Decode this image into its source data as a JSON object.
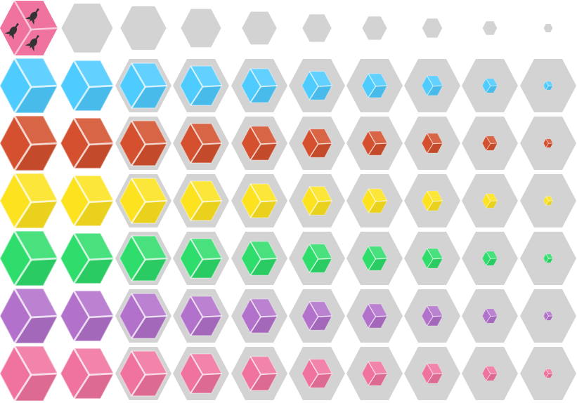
{
  "sheet": {
    "title": "",
    "columns": 10,
    "background_tile_color": "#d3d3d3",
    "scale_steps": [
      1.0,
      0.92,
      0.82,
      0.72,
      0.62,
      0.52,
      0.44,
      0.36,
      0.26,
      0.16
    ]
  },
  "bomb_row": {
    "name": "bomb-tile",
    "color": "#f0739f",
    "icon": "bomb-icon",
    "icon_count": 3
  },
  "gem_rows": [
    {
      "name": "blue-gem",
      "color": "#4ecbff"
    },
    {
      "name": "red-gem",
      "color": "#d4502e"
    },
    {
      "name": "yellow-gem",
      "color": "#fde31f"
    },
    {
      "name": "green-gem",
      "color": "#2fdd6c"
    },
    {
      "name": "purple-gem",
      "color": "#b271cb"
    },
    {
      "name": "pink-gem",
      "color": "#f0739f"
    }
  ]
}
